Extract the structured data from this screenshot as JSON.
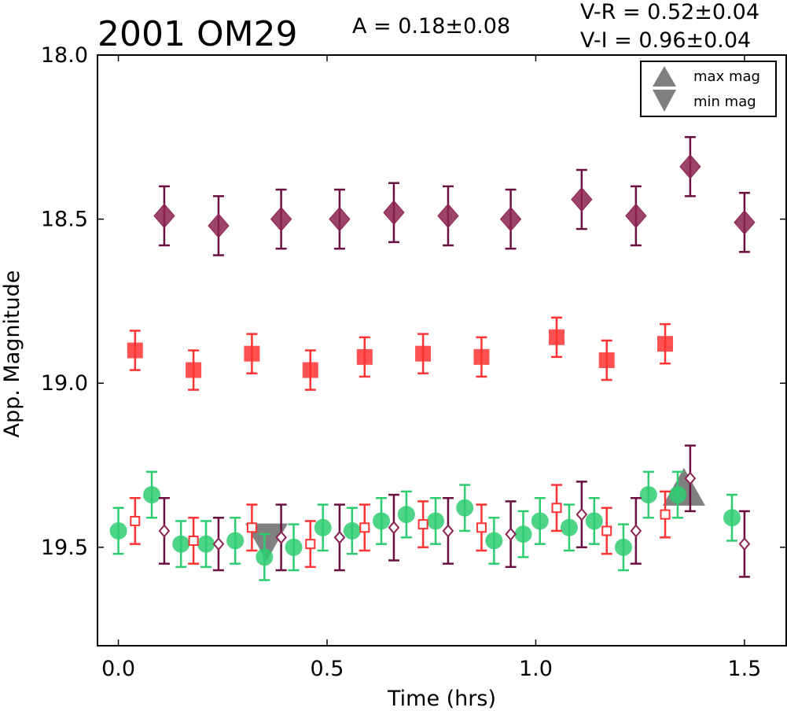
{
  "chart_data": {
    "type": "scatter",
    "title": "2001 OM29",
    "annotation_amplitude": "A  = 0.18±0.08",
    "annotation_vr": "V-R = 0.52±0.04",
    "annotation_vi": "V-I  = 0.96±0.04",
    "xlabel": "Time (hrs)",
    "ylabel": "App. Magnitude",
    "xlim": [
      -0.05,
      1.6
    ],
    "ylim": [
      19.8,
      18.0
    ],
    "y_inverted": true,
    "xticks": [
      "0.0",
      "0.5",
      "1.0",
      "1.5"
    ],
    "xtick_values": [
      0.0,
      0.5,
      1.0,
      1.5
    ],
    "yticks": [
      "18.0",
      "18.5",
      "19.0",
      "19.5"
    ],
    "ytick_values": [
      18.0,
      18.5,
      19.0,
      19.5
    ],
    "grid": false,
    "legend_position": "top-right",
    "legend": [
      {
        "label": "max mag",
        "marker": "triangle-up"
      },
      {
        "label": "min mag",
        "marker": "triangle-down"
      }
    ],
    "colors": {
      "green": "#2ecc71",
      "red": "#ff3333",
      "purple": "#8b2252",
      "purple_err": "#6b0f42",
      "extremum": "#808080"
    },
    "series": [
      {
        "marker": "diamond-filled",
        "color": "#8b2252",
        "x": [
          0.11,
          0.24,
          0.39,
          0.53,
          0.66,
          0.79,
          0.94,
          1.11,
          1.24,
          1.37,
          1.5
        ],
        "y": [
          18.49,
          18.52,
          18.5,
          18.5,
          18.48,
          18.49,
          18.5,
          18.44,
          18.49,
          18.34,
          18.51
        ],
        "err": [
          0.09,
          0.09,
          0.09,
          0.09,
          0.09,
          0.09,
          0.09,
          0.09,
          0.09,
          0.09,
          0.09
        ]
      },
      {
        "marker": "square-filled",
        "color": "#ff3333",
        "x": [
          0.04,
          0.18,
          0.32,
          0.46,
          0.59,
          0.73,
          0.87,
          1.05,
          1.17,
          1.31
        ],
        "y": [
          18.9,
          18.96,
          18.91,
          18.96,
          18.92,
          18.91,
          18.92,
          18.86,
          18.93,
          18.88
        ],
        "err": [
          0.06,
          0.06,
          0.06,
          0.06,
          0.06,
          0.06,
          0.06,
          0.06,
          0.06,
          0.06
        ]
      },
      {
        "marker": "circle-filled",
        "color": "#2ecc71",
        "x": [
          0.0,
          0.08,
          0.15,
          0.21,
          0.28,
          0.35,
          0.42,
          0.49,
          0.56,
          0.63,
          0.69,
          0.76,
          0.83,
          0.9,
          0.97,
          1.01,
          1.08,
          1.14,
          1.21,
          1.27,
          1.34,
          1.47
        ],
        "y": [
          19.45,
          19.34,
          19.49,
          19.49,
          19.48,
          19.53,
          19.5,
          19.44,
          19.45,
          19.42,
          19.4,
          19.42,
          19.38,
          19.48,
          19.46,
          19.42,
          19.44,
          19.42,
          19.5,
          19.34,
          19.34,
          19.41
        ],
        "err": [
          0.07,
          0.07,
          0.07,
          0.07,
          0.07,
          0.07,
          0.07,
          0.07,
          0.07,
          0.07,
          0.07,
          0.07,
          0.07,
          0.07,
          0.07,
          0.07,
          0.07,
          0.07,
          0.07,
          0.07,
          0.07,
          0.07
        ]
      },
      {
        "marker": "square-open",
        "color": "#ff3333",
        "x": [
          0.04,
          0.18,
          0.32,
          0.46,
          0.59,
          0.73,
          0.87,
          1.05,
          1.17,
          1.31
        ],
        "y": [
          19.42,
          19.48,
          19.44,
          19.49,
          19.44,
          19.43,
          19.44,
          19.38,
          19.45,
          19.4
        ],
        "err": [
          0.07,
          0.07,
          0.07,
          0.07,
          0.07,
          0.07,
          0.07,
          0.07,
          0.07,
          0.07
        ]
      },
      {
        "marker": "diamond-open",
        "color": "#8b2252",
        "x": [
          0.11,
          0.24,
          0.39,
          0.53,
          0.66,
          0.79,
          0.94,
          1.11,
          1.24,
          1.37,
          1.5
        ],
        "y": [
          19.45,
          19.49,
          19.47,
          19.47,
          19.44,
          19.45,
          19.46,
          19.4,
          19.45,
          19.29,
          19.49
        ],
        "err": [
          0.1,
          0.08,
          0.1,
          0.1,
          0.1,
          0.1,
          0.1,
          0.1,
          0.1,
          0.1,
          0.1
        ]
      }
    ],
    "extrema": {
      "max": {
        "x": 1.355,
        "y": 19.33
      },
      "min": {
        "x": 0.355,
        "y": 19.49
      }
    }
  }
}
